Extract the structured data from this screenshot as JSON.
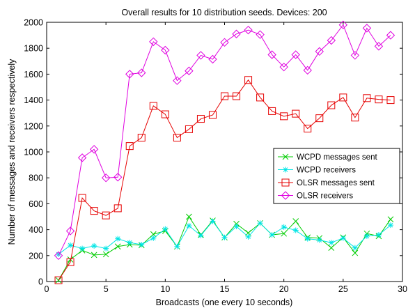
{
  "chart_data": {
    "type": "line",
    "title": "Overall results for 10 distribution seeds. Devices: 200",
    "xlabel": "Broadcasts (one every 10 seconds)",
    "ylabel": "Number of messages and receivers respectively",
    "xlim": [
      0,
      30
    ],
    "ylim": [
      0,
      2000
    ],
    "xticks": [
      0,
      5,
      10,
      15,
      20,
      25,
      30
    ],
    "yticks": [
      0,
      200,
      400,
      600,
      800,
      1000,
      1200,
      1400,
      1600,
      1800,
      2000
    ],
    "grid": false,
    "legend_position": "right-middle",
    "x": [
      1,
      2,
      3,
      4,
      5,
      6,
      7,
      8,
      9,
      10,
      11,
      12,
      13,
      14,
      15,
      16,
      17,
      18,
      19,
      20,
      21,
      22,
      23,
      24,
      25,
      26,
      27,
      28,
      29
    ],
    "series": [
      {
        "name": "WCPD messages sent",
        "color": "#00cc00",
        "marker": "x",
        "values": [
          10,
          170,
          240,
          205,
          210,
          270,
          285,
          280,
          365,
          390,
          270,
          500,
          360,
          470,
          340,
          445,
          375,
          450,
          360,
          370,
          465,
          340,
          335,
          260,
          340,
          220,
          370,
          350,
          480
        ]
      },
      {
        "name": "WCPD receivers",
        "color": "#00e5e5",
        "marker": "asterisk",
        "values": [
          210,
          280,
          255,
          275,
          255,
          330,
          300,
          285,
          335,
          405,
          270,
          430,
          355,
          465,
          340,
          425,
          345,
          450,
          360,
          420,
          395,
          330,
          320,
          300,
          335,
          260,
          350,
          360,
          435
        ]
      },
      {
        "name": "OLSR messages sent",
        "color": "#e60000",
        "marker": "square",
        "values": [
          10,
          150,
          645,
          545,
          510,
          565,
          1045,
          1110,
          1355,
          1290,
          1110,
          1175,
          1255,
          1285,
          1430,
          1430,
          1555,
          1420,
          1315,
          1275,
          1295,
          1180,
          1260,
          1360,
          1420,
          1265,
          1415,
          1405,
          1400
        ]
      },
      {
        "name": "OLSR receivers",
        "color": "#e000e0",
        "marker": "diamond",
        "values": [
          200,
          390,
          955,
          1020,
          800,
          805,
          1600,
          1610,
          1850,
          1785,
          1550,
          1625,
          1745,
          1715,
          1845,
          1910,
          1940,
          1905,
          1750,
          1655,
          1750,
          1630,
          1775,
          1860,
          1980,
          1745,
          1955,
          1815,
          1900
        ]
      }
    ]
  }
}
